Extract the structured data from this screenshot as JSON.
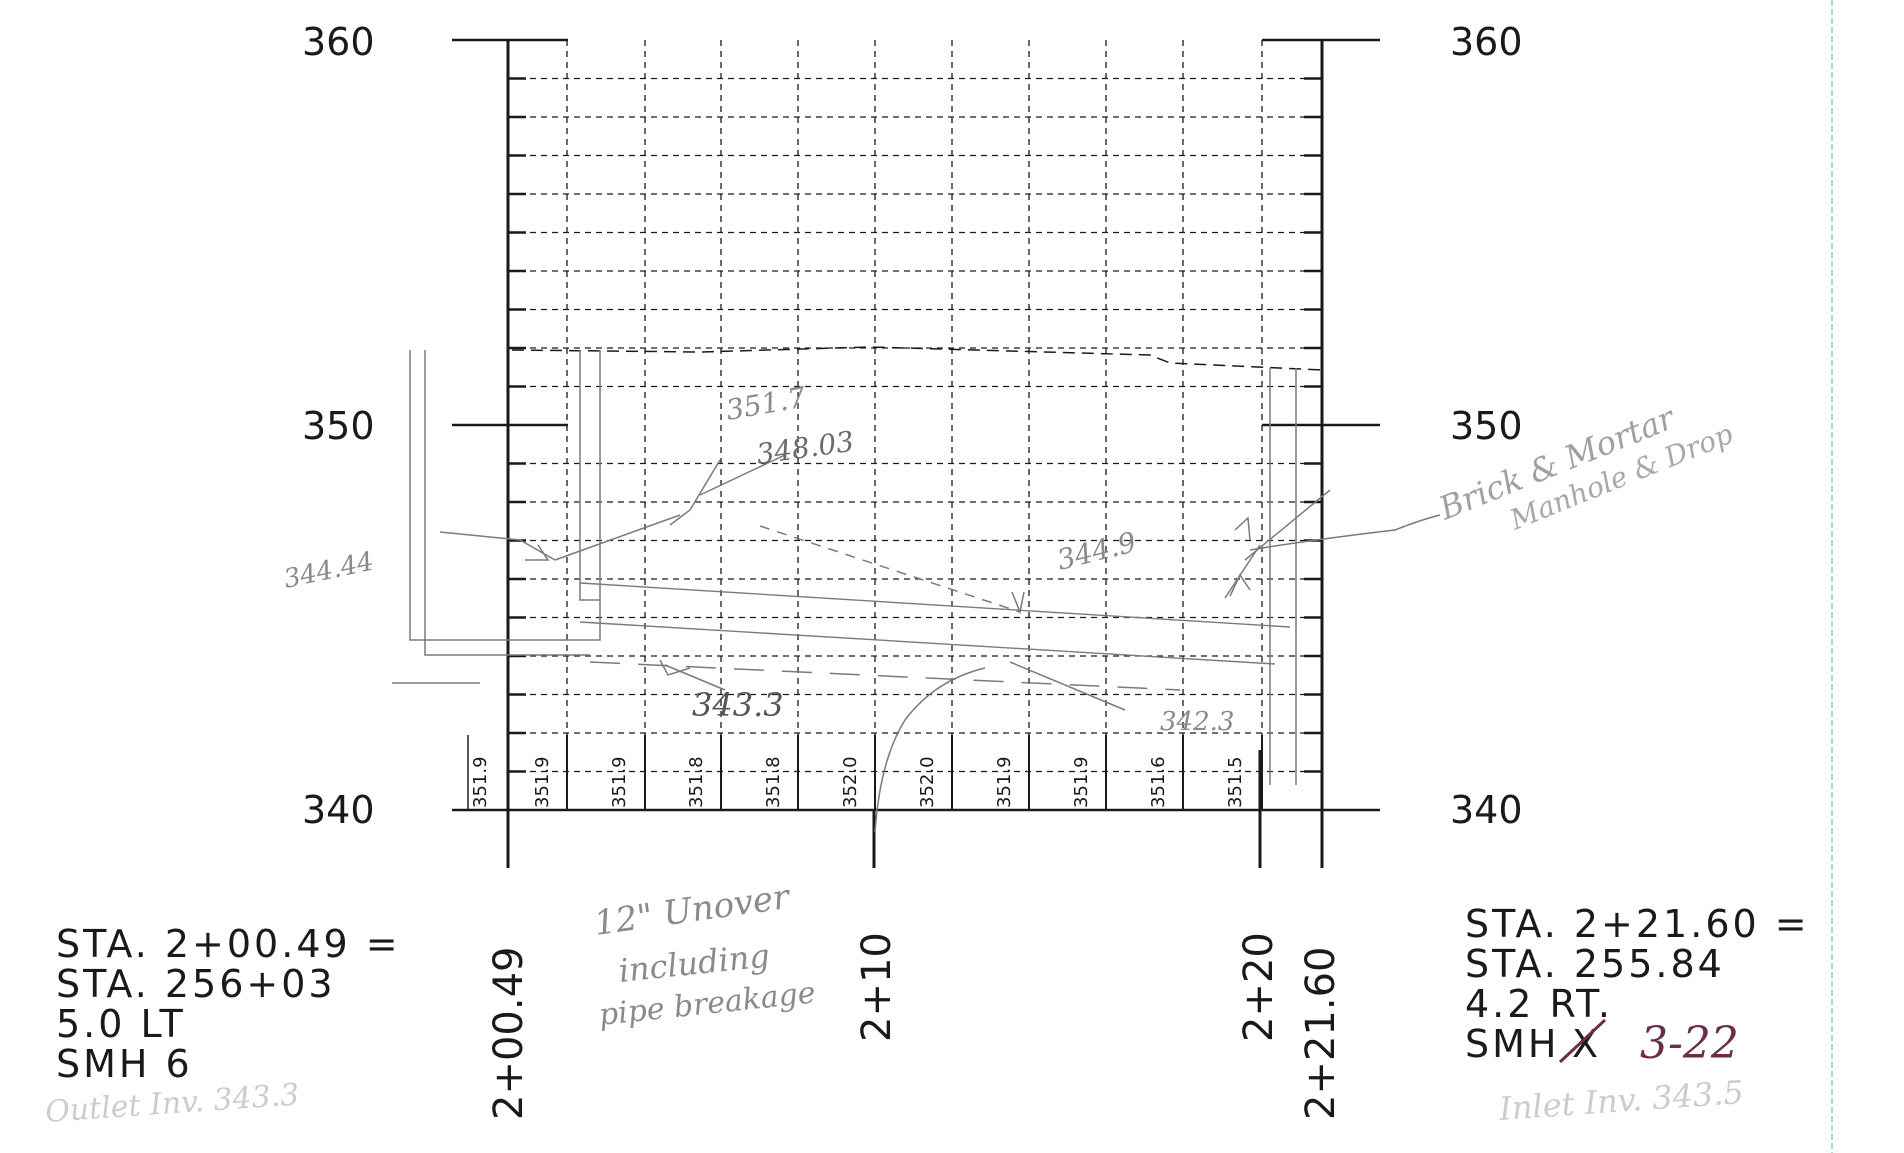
{
  "profile": {
    "elevation_labels_left": [
      "360",
      "350",
      "340"
    ],
    "elevation_labels_right": [
      "360",
      "350",
      "340"
    ],
    "ground_elevations": [
      "351.9",
      "351.9",
      "351.9",
      "351.8",
      "351.8",
      "352.0",
      "352.0",
      "351.9",
      "351.9",
      "351.6",
      "351.5"
    ],
    "station_labels": [
      "2+00.49",
      "2+10",
      "2+20",
      "2+21.60"
    ]
  },
  "left_structure": {
    "line1": "STA. 2+00.49 =",
    "line2": "STA. 256+03",
    "line3": "5.0 LT",
    "line4": "SMH 6",
    "handwritten": "Outlet Inv. 343.3"
  },
  "right_structure": {
    "line1": "STA. 2+21.60 =",
    "line2": "STA. 255.84",
    "line3": "4.2 RT.",
    "line4_prefix": "SMH",
    "struck_out": "X",
    "handwritten_id": "3-22",
    "handwritten": "Inlet Inv. 343.5"
  },
  "annotations": {
    "left_elev": "344.44",
    "top_elev_1": "351.7",
    "top_elev_2": "348.03",
    "mid_elev": "344.9",
    "bottom_left_elev": "343.3",
    "bottom_right_elev": "342.3",
    "pipe_note_line1": "12\" Unover",
    "pipe_note_line2": "including",
    "pipe_note_line3": "pipe breakage",
    "brick_note_line1": "Brick & Mortar",
    "brick_note_line2": "Manhole & Drop"
  },
  "colors": {
    "ink": "#1a1a1a",
    "pencil": "#7a7a7a",
    "faint": "#c2c2c2",
    "pen_red": "#6a2e4a",
    "margin_line": "#9fd9cf"
  }
}
